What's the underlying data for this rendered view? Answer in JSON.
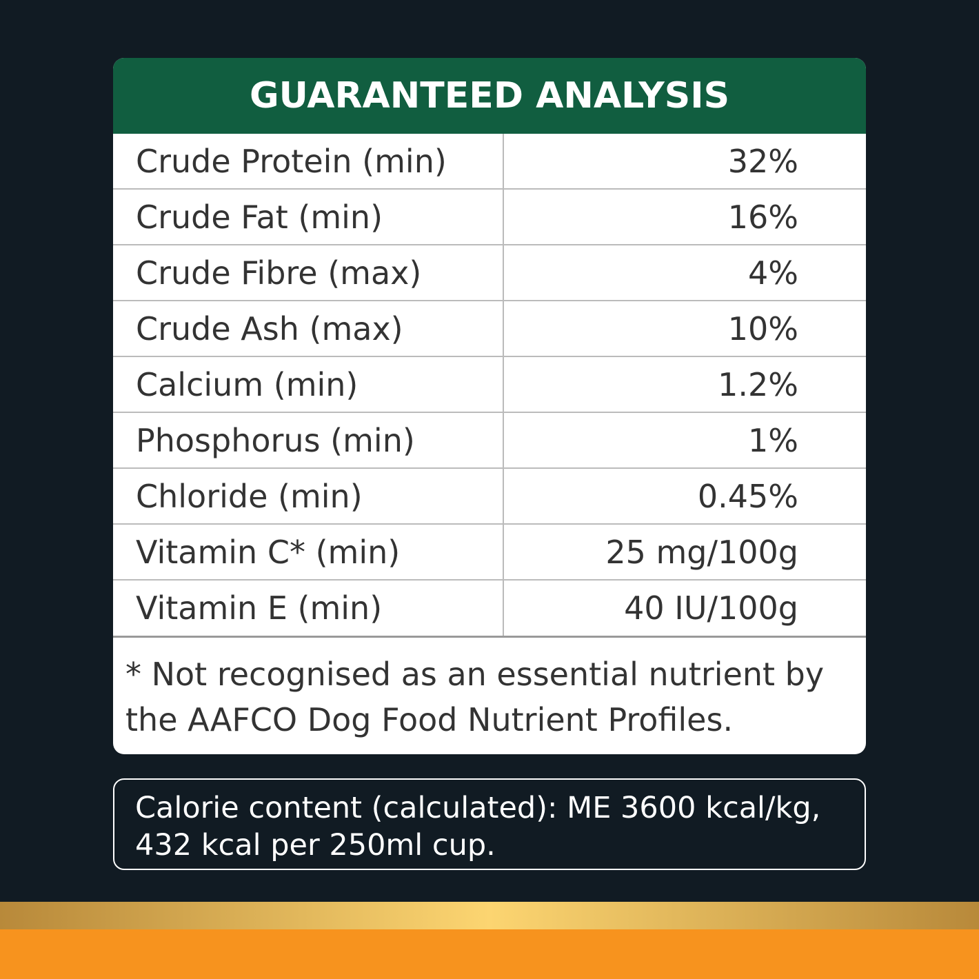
{
  "table": {
    "title": "GUARANTEED ANALYSIS",
    "rows": [
      [
        "Crude Protein (min)",
        "32%"
      ],
      [
        "Crude Fat (min)",
        "16%"
      ],
      [
        "Crude Fibre (max)",
        "4%"
      ],
      [
        "Crude Ash (max)",
        "10%"
      ],
      [
        "Calcium (min)",
        "1.2%"
      ],
      [
        "Phosphorus (min)",
        "1%"
      ],
      [
        "Chloride (min)",
        "0.45%"
      ],
      [
        "Vitamin C* (min)",
        "25 mg/100g"
      ],
      [
        "Vitamin E (min)",
        "40 IU/100g"
      ]
    ],
    "footnote": "* Not recognised as an essential nutrient by the AAFCO Dog Food Nutrient Profiles."
  },
  "calorie_note": "Calorie content (calculated): ME 3600 kcal/kg, 432 kcal per 250ml cup."
}
